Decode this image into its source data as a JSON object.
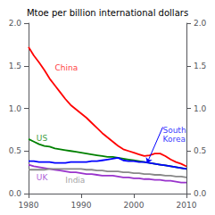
{
  "chart_data": {
    "type": "line",
    "title": "Mtoe per billion international dollars",
    "x": [
      1980,
      1981,
      1982,
      1983,
      1984,
      1985,
      1986,
      1987,
      1988,
      1989,
      1990,
      1991,
      1992,
      1993,
      1994,
      1995,
      1996,
      1997,
      1998,
      1999,
      2000,
      2001,
      2002,
      2003,
      2004,
      2005,
      2006,
      2007,
      2008,
      2009,
      2010
    ],
    "series": [
      {
        "color": "#ff0000",
        "values": [
          1.72,
          1.62,
          1.54,
          1.45,
          1.35,
          1.27,
          1.19,
          1.11,
          1.04,
          0.99,
          0.94,
          0.89,
          0.83,
          0.77,
          0.71,
          0.66,
          0.61,
          0.56,
          0.52,
          0.5,
          0.48,
          0.46,
          0.44,
          0.45,
          0.47,
          0.47,
          0.44,
          0.4,
          0.37,
          0.35,
          0.32
        ]
      },
      {
        "color": "#008000",
        "values": [
          0.64,
          0.61,
          0.58,
          0.56,
          0.55,
          0.53,
          0.52,
          0.51,
          0.5,
          0.49,
          0.48,
          0.47,
          0.46,
          0.45,
          0.44,
          0.43,
          0.43,
          0.42,
          0.41,
          0.4,
          0.39,
          0.38,
          0.37,
          0.36,
          0.35,
          0.34,
          0.33,
          0.32,
          0.31,
          0.3,
          0.29
        ]
      },
      {
        "color": "#9933cc",
        "values": [
          0.34,
          0.32,
          0.31,
          0.3,
          0.29,
          0.28,
          0.27,
          0.26,
          0.25,
          0.25,
          0.24,
          0.23,
          0.23,
          0.22,
          0.21,
          0.21,
          0.21,
          0.2,
          0.19,
          0.19,
          0.18,
          0.18,
          0.17,
          0.17,
          0.16,
          0.16,
          0.15,
          0.15,
          0.14,
          0.13,
          0.13
        ]
      },
      {
        "color": "#888888",
        "values": [
          0.28,
          0.28,
          0.28,
          0.28,
          0.29,
          0.29,
          0.29,
          0.29,
          0.29,
          0.29,
          0.29,
          0.28,
          0.28,
          0.27,
          0.27,
          0.26,
          0.26,
          0.26,
          0.25,
          0.25,
          0.24,
          0.24,
          0.23,
          0.23,
          0.22,
          0.22,
          0.21,
          0.21,
          0.2,
          0.2,
          0.19
        ]
      },
      {
        "color": "#0000ff",
        "values": [
          0.38,
          0.38,
          0.37,
          0.37,
          0.37,
          0.36,
          0.36,
          0.36,
          0.37,
          0.37,
          0.37,
          0.37,
          0.38,
          0.38,
          0.39,
          0.4,
          0.41,
          0.42,
          0.39,
          0.38,
          0.38,
          0.37,
          0.37,
          0.36,
          0.35,
          0.34,
          0.33,
          0.32,
          0.31,
          0.3,
          0.29
        ]
      }
    ],
    "xlim": [
      1980,
      2010
    ],
    "xticks": [
      1980,
      1990,
      2000,
      2010
    ],
    "ylim": [
      0.0,
      2.0
    ],
    "yticks": [
      {
        "value": 0,
        "label": "0.0"
      },
      0.5,
      {
        "value": 1,
        "label": "1.0"
      },
      1.5,
      {
        "value": 2,
        "label": "2.0"
      }
    ],
    "y2lim": [
      0.0,
      2.0
    ],
    "y2ticks": [
      {
        "value": 0,
        "label": "0.0"
      },
      0.5,
      {
        "value": 1,
        "label": "1.0"
      },
      1.5,
      {
        "value": 2,
        "label": "2.0"
      }
    ],
    "grid": false,
    "annotations": [
      {
        "text": "China",
        "x": 1985,
        "y": 1.42,
        "color": "#ff0000"
      },
      {
        "text": "US",
        "x": 1981.5,
        "y": 0.6,
        "color": "#008000"
      },
      {
        "text": "UK",
        "x": 1981.5,
        "y": 0.14,
        "color": "#9933cc"
      },
      {
        "text": "India",
        "x": 1987,
        "y": 0.105,
        "color": "#888888"
      },
      {
        "text": "South\nKorea",
        "x": 2005.5,
        "y": 0.8,
        "color": "#0000ff",
        "arrow_from": [
          2005.5,
          0.78
        ],
        "arrow_to": [
          2002.5,
          0.355
        ]
      }
    ]
  }
}
